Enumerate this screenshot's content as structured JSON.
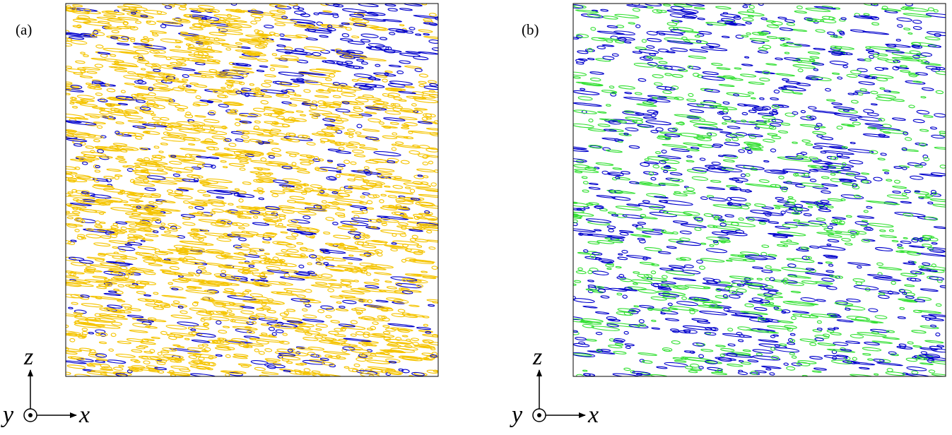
{
  "panels": [
    {
      "label": "(a)",
      "axis_z": "z",
      "axis_x": "x",
      "axis_y": "y"
    },
    {
      "label": "(b)",
      "axis_z": "z",
      "axis_x": "x",
      "axis_y": "y"
    }
  ]
}
